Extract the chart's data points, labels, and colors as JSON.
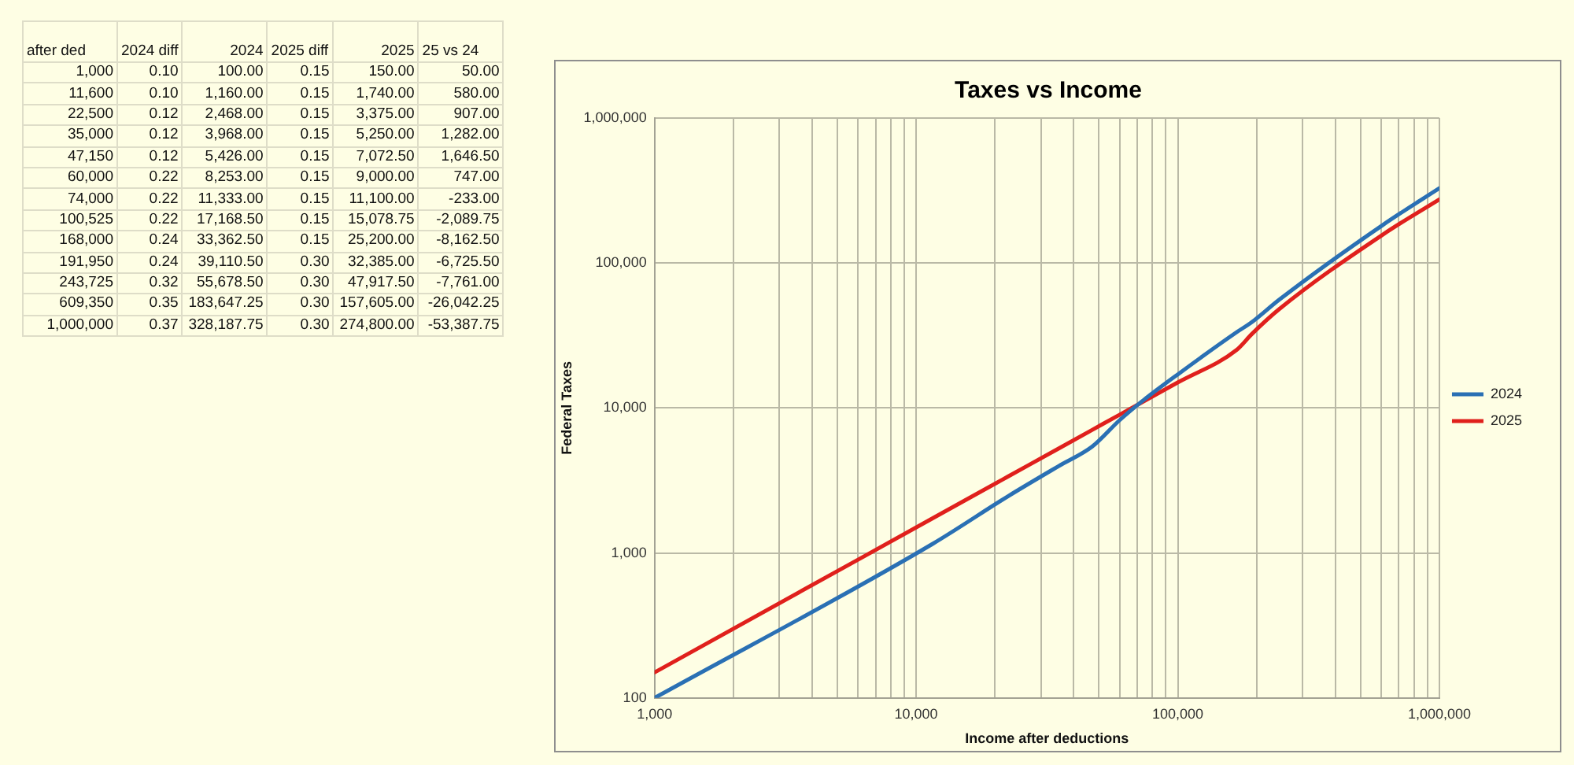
{
  "chart_data": [
    {
      "type": "other",
      "annotations": [
        "after ded",
        "2024 diff",
        "2024",
        "2025 diff",
        "2025",
        "25 vs 24",
        "1,000",
        "0.10",
        "100.00",
        "0.15",
        "150.00",
        "50.00",
        "11,600",
        "0.10",
        "1,160.00",
        "0.15",
        "1,740.00",
        "580.00",
        "22,500",
        "0.12",
        "2,468.00",
        "0.15",
        "3,375.00",
        "907.00",
        "35,000",
        "0.12",
        "3,968.00",
        "0.15",
        "5,250.00",
        "1,282.00",
        "47,150",
        "0.12",
        "5,426.00",
        "0.15",
        "7,072.50",
        "1,646.50",
        "60,000",
        "0.22",
        "8,253.00",
        "0.15",
        "9,000.00",
        "747.00",
        "74,000",
        "0.22",
        "11,333.00",
        "0.15",
        "11,100.00",
        "-233.00",
        "100,525",
        "0.22",
        "17,168.50",
        "0.15",
        "15,078.75",
        "-2,089.75",
        "168,000",
        "0.24",
        "33,362.50",
        "0.15",
        "25,200.00",
        "-8,162.50",
        "191,950",
        "0.24",
        "39,110.50",
        "0.30",
        "32,385.00",
        "-6,725.50",
        "243,725",
        "0.32",
        "55,678.50",
        "0.30",
        "47,917.50",
        "-7,761.00",
        "609,350",
        "0.35",
        "183,647.25",
        "0.30",
        "157,605.00",
        "-26,042.25",
        "1,000,000",
        "0.37",
        "328,187.75",
        "0.30",
        "274,800.00",
        "-53,387.75"
      ]
    },
    {
      "type": "line",
      "title": "Taxes vs Income",
      "xlabel": "Income after deductions",
      "ylabel": "Federal Taxes",
      "x": [
        1000,
        11600,
        22500,
        35000,
        47150,
        60000,
        74000,
        100525,
        168000,
        191950,
        243725,
        609350,
        1000000
      ],
      "series": [
        {
          "name": "2024",
          "color": "#2a70b4",
          "values": [
            100,
            1160,
            2468,
            3968,
            5426,
            8253,
            11333,
            17168.5,
            33362.5,
            39110.5,
            55678.5,
            183647.25,
            328187.75
          ]
        },
        {
          "name": "2025",
          "color": "#e0201c",
          "values": [
            150,
            1740,
            3375,
            5250,
            7072.5,
            9000,
            11100,
            15078.75,
            25200,
            32385,
            47917.5,
            157605,
            274800
          ]
        }
      ],
      "log": "xy",
      "xlim": [
        1000,
        1000000
      ],
      "ylim": [
        100,
        1000000
      ],
      "xticks": [
        {
          "value": 1000,
          "label": "1,000"
        },
        {
          "value": 2000,
          "label": null
        },
        {
          "value": 3000,
          "label": null
        },
        {
          "value": 4000,
          "label": null
        },
        {
          "value": 5000,
          "label": null
        },
        {
          "value": 6000,
          "label": null
        },
        {
          "value": 7000,
          "label": null
        },
        {
          "value": 8000,
          "label": null
        },
        {
          "value": 9000,
          "label": null
        },
        {
          "value": 10000,
          "label": "10,000"
        },
        {
          "value": 20000,
          "label": null
        },
        {
          "value": 30000,
          "label": null
        },
        {
          "value": 40000,
          "label": null
        },
        {
          "value": 50000,
          "label": null
        },
        {
          "value": 60000,
          "label": null
        },
        {
          "value": 70000,
          "label": null
        },
        {
          "value": 80000,
          "label": null
        },
        {
          "value": 90000,
          "label": null
        },
        {
          "value": 100000,
          "label": "100,000"
        },
        {
          "value": 200000,
          "label": null
        },
        {
          "value": 300000,
          "label": null
        },
        {
          "value": 400000,
          "label": null
        },
        {
          "value": 500000,
          "label": null
        },
        {
          "value": 600000,
          "label": null
        },
        {
          "value": 700000,
          "label": null
        },
        {
          "value": 800000,
          "label": null
        },
        {
          "value": 900000,
          "label": null
        },
        {
          "value": 1000000,
          "label": "1,000,000"
        }
      ],
      "yticks": [
        {
          "value": 100,
          "label": "100"
        },
        {
          "value": 1000,
          "label": "1,000"
        },
        {
          "value": 10000,
          "label": "10,000"
        },
        {
          "value": 100000,
          "label": "100,000"
        },
        {
          "value": 1000000,
          "label": "1,000,000"
        }
      ],
      "grid": true,
      "legend": "right"
    }
  ]
}
